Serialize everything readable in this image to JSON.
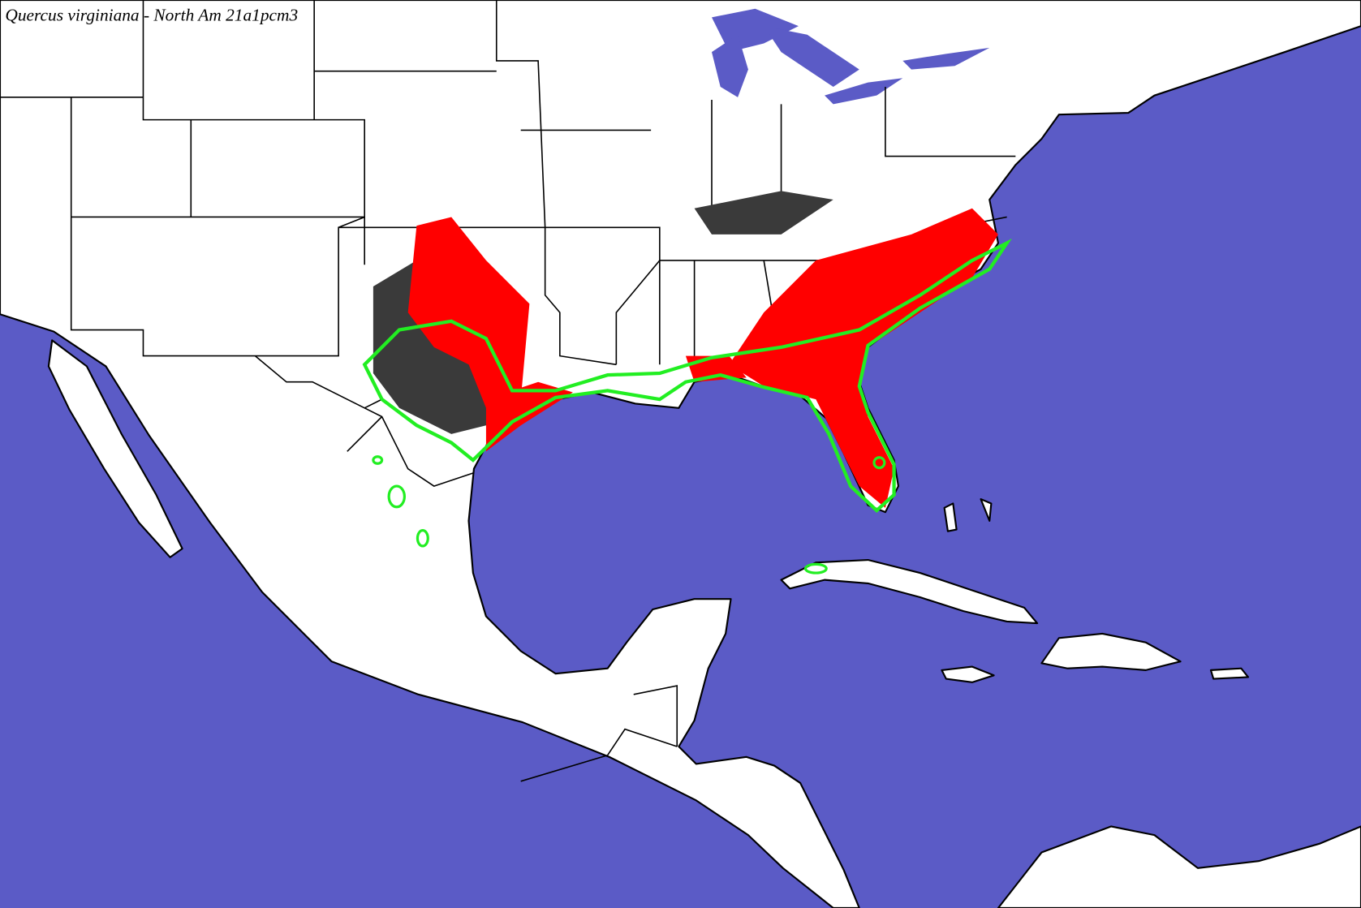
{
  "title": "Quercus virginiana - North Am 21a1pcm3"
}
